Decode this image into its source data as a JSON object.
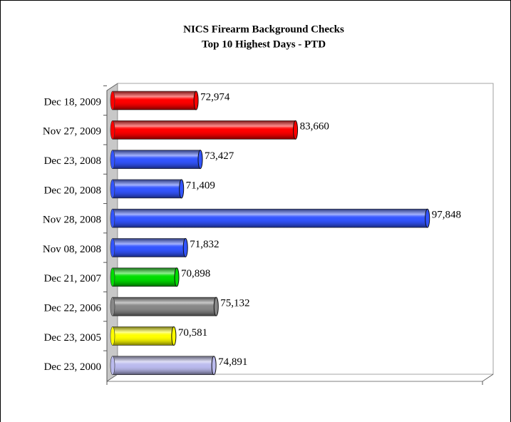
{
  "chart_data": {
    "type": "bar",
    "orientation": "horizontal",
    "title": "NICS Firearm Background Checks",
    "subtitle": "Top 10 Highest Days - PTD",
    "categories": [
      "Dec 18, 2009",
      "Nov 27, 2009",
      "Dec 23, 2008",
      "Dec 20, 2008",
      "Nov 28, 2008",
      "Nov 08, 2008",
      "Dec 21, 2007",
      "Dec 22, 2006",
      "Dec 23, 2005",
      "Dec 23, 2000"
    ],
    "values": [
      72974,
      83660,
      73427,
      71409,
      97848,
      71832,
      70898,
      75132,
      70581,
      74891
    ],
    "value_labels": [
      "72,974",
      "83,660",
      "73,427",
      "71,409",
      "97,848",
      "71,832",
      "70,898",
      "75,132",
      "70,581",
      "74,891"
    ],
    "colors": [
      "#ff0000",
      "#ff0000",
      "#3355ff",
      "#3355ff",
      "#3355ff",
      "#3355ff",
      "#00dd00",
      "#888888",
      "#ffff00",
      "#bbbbee"
    ],
    "xlim": [
      64000,
      104000
    ]
  }
}
